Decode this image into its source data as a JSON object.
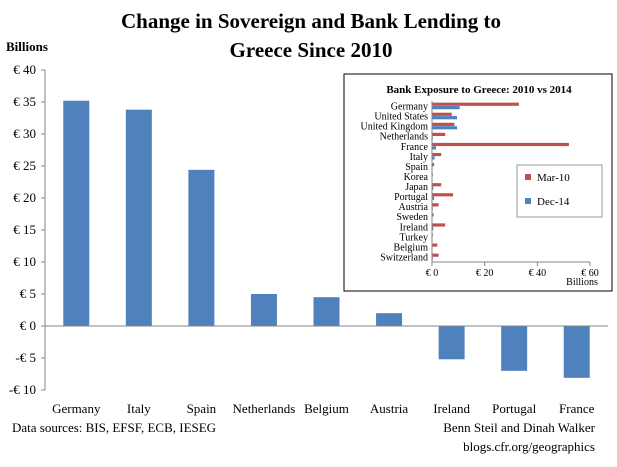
{
  "chart_data": [
    {
      "type": "bar",
      "title_line1": "Change in Sovereign and Bank Lending to",
      "title_line2": "Greece Since 2010",
      "ylabel": "Billions",
      "categories": [
        "Germany",
        "Italy",
        "Spain",
        "Netherlands",
        "Belgium",
        "Austria",
        "Ireland",
        "Portugal",
        "France"
      ],
      "values": [
        35.2,
        33.8,
        24.4,
        5.0,
        4.5,
        2.0,
        -5.2,
        -7.0,
        -8.1
      ],
      "ylim": [
        -10,
        40
      ],
      "yticks": [
        -10,
        -5,
        0,
        5,
        10,
        15,
        20,
        25,
        30,
        35,
        40
      ],
      "ytick_labels": [
        "-€ 10",
        "-€ 5",
        "€ 0",
        "€ 5",
        "€ 10",
        "€ 15",
        "€ 20",
        "€ 25",
        "€ 30",
        "€ 35",
        "€ 40"
      ],
      "grid": false,
      "bar_color": "#4f81bd",
      "source": "Data sources: BIS, EFSF, ECB, IESEG",
      "credit_line1": "Benn Steil and Dinah Walker",
      "credit_line2": "blogs.cfr.org/geographics"
    },
    {
      "type": "bar",
      "orientation": "horizontal",
      "title": "Bank Exposure to Greece: 2010 vs 2014",
      "xlabel": "Billions",
      "categories": [
        "Germany",
        "United States",
        "United Kingdom",
        "Netherlands",
        "France",
        "Italy",
        "Spain",
        "Korea",
        "Japan",
        "Portugal",
        "Austria",
        "Sweden",
        "Ireland",
        "Turkey",
        "Belgium",
        "Switzerland"
      ],
      "series": [
        {
          "name": "Mar-10",
          "color": "#c0504d",
          "values": [
            33,
            7.5,
            8.5,
            5,
            52,
            3.5,
            0.8,
            0.3,
            3.5,
            8,
            2.5,
            0.6,
            5,
            0.3,
            2,
            2.5
          ]
        },
        {
          "name": "Dec-14",
          "color": "#4f81bd",
          "values": [
            10.5,
            9.5,
            9.5,
            0.3,
            1.5,
            1,
            0.2,
            0.1,
            0.5,
            0.8,
            0.3,
            0.1,
            0.5,
            0.1,
            0.2,
            0.3
          ]
        }
      ],
      "xlim": [
        0,
        60
      ],
      "xticks": [
        0,
        20,
        40,
        60
      ],
      "xtick_labels": [
        "€ 0",
        "€ 20",
        "€ 40",
        "€ 60"
      ],
      "legend": "right"
    }
  ]
}
